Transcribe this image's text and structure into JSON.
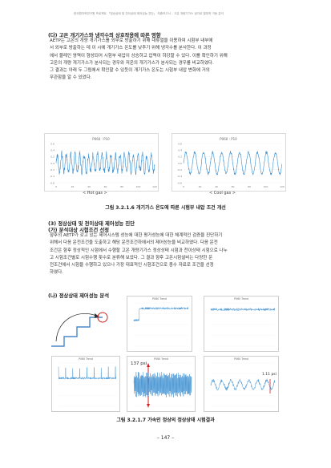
{
  "running_header": "한국원자력연구원 프로젝트 「정상상태 및 천이상태 제어성능 진단」 최종보고서 – 고온 개량기가스 냉각로 열부하 거동 분석",
  "sections": {
    "s1_title": "(다) 고온 개기가스와 냉각수의 상호작용에 따른 영향",
    "s1_paragraph": [
      "AETP는 고온의 개량 개기가스를 외부로 방출하기 위해 대류열을 이용하여 시험부 내부에",
      "서 외부로 방출하는 데 이 시에 개기가스 온도를 낮추기 위해 냉각수를 분사한다. 이 과정",
      "에서 블레인 영역이 형성되어 시험부 내압이 상승하고 압력이 하강할 수 있다. 이를 확인하기 위해",
      "고온의 개량 개기가스가 분사되는 경우와 저온의 개기가스가 분사되는 경우를 비교하였다.",
      "그 결과는 아래 두 그림에서 확인할 수 있듯이 개기가스 온도는 시험부 내압 변화에 거의",
      "무관함을 알 수 있었다."
    ],
    "s2_title": "(3) 정상상태 및 천이상태 제어성능 진단",
    "s2a_title": "(가) 분석대상 시험조건 선정",
    "s2_paragraph": [
      "향후의 AETP가 갖고 있는 제어시스템 성능에 대한 평가성능에 대한 체계적인 검증을 진단하기",
      "위해서 다음 운전조건을 도출하고 해당 운전조건하에서의 제어성능을 비교하였다. 다음 운전",
      "조건은 향후 정상적인 시험에서 수행할 고온 개량기가스 정상상태 시험과 천이상태 시험으로 나누",
      "고 시험조건별로 시험수행 횟수로 분류해 보았다. 그 결과 향후 고온시험설비는 다양한 운",
      "전조건에서 시험을 수행하고 있으나 가장 대표적인 시험조건으로 충수 자료로 조건을 선정",
      "하였다."
    ],
    "s2b_title": "(나) 정상상태 제어성능 분석"
  },
  "figure1": {
    "left_title": "P060 : P10",
    "right_title": "P060 : P10",
    "left_label": "< Hot gas >",
    "right_label": "< Cool gas >",
    "caption": "그림 3.2.1.6 개기가스 온도에 따른 시험부 내압 조건 개선",
    "left_ylim": [
      -0.6,
      0.6
    ],
    "right_ylim": [
      -0.6,
      0.6
    ],
    "left_yticks": [
      "0.6",
      "0.4",
      "0.2",
      "0.0",
      "-0.2",
      "-0.4",
      "-0.6"
    ],
    "right_yticks": [
      "0.6",
      "0.4",
      "0.2",
      "0.0",
      "-0.2",
      "-0.4",
      "-0.6"
    ],
    "left_xticks": [
      "0",
      "20",
      "40",
      "60",
      "80",
      "100",
      "120"
    ],
    "right_xticks": [
      "0",
      "20",
      "40",
      "60",
      "80",
      "100",
      "120"
    ],
    "line_color": "#3b8fd0"
  },
  "figure2": {
    "panels": [
      "P060 Trend",
      "P060 Trend",
      "P060 Trend",
      "P060 Trend",
      "P060 Trend",
      "P060 Trend"
    ],
    "annotation_a": "137 psi",
    "annotation_b": "1.11 psi",
    "caption": "그림 3.2.1.7 가속인 정상의 정상상태 시험결과",
    "highlight_color": "#d62020"
  },
  "page_number": "– 147 –"
}
